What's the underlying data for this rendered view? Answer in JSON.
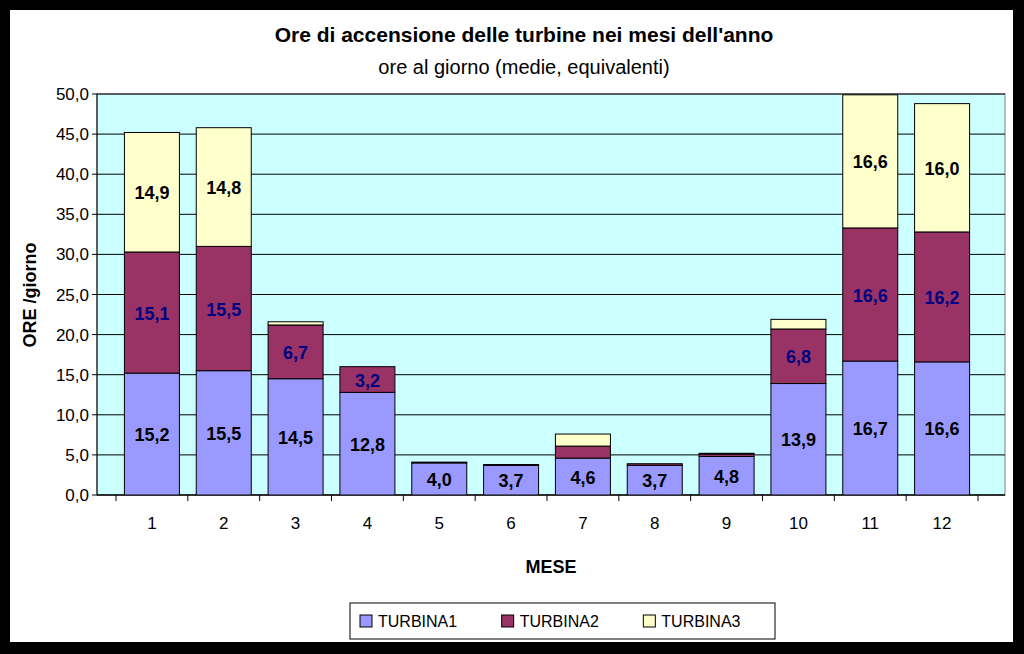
{
  "chart_data": {
    "type": "bar",
    "title": "Ore di accensione delle turbine nei mesi dell'anno",
    "subtitle": "ore al giorno (medie, equivalenti)",
    "x_label": "MESE",
    "y_label": "ORE /giorno",
    "categories": [
      "1",
      "2",
      "3",
      "4",
      "5",
      "6",
      "7",
      "8",
      "9",
      "10",
      "11",
      "12"
    ],
    "stacked": true,
    "data_labels": true,
    "grid": true,
    "legend": "bottom",
    "ylim": [
      0,
      50
    ],
    "yticks": [
      {
        "value": 0,
        "label": "0,0"
      },
      {
        "value": 5,
        "label": "5,0"
      },
      {
        "value": 10,
        "label": "10,0"
      },
      {
        "value": 15,
        "label": "15,0"
      },
      {
        "value": 20,
        "label": "20,0"
      },
      {
        "value": 25,
        "label": "25,0"
      },
      {
        "value": 30,
        "label": "30,0"
      },
      {
        "value": 35,
        "label": "35,0"
      },
      {
        "value": 40,
        "label": "40,0"
      },
      {
        "value": 45,
        "label": "45,0"
      },
      {
        "value": 50,
        "label": "50,0"
      }
    ],
    "series": [
      {
        "name": "TURBINA1",
        "color": "#9999ff",
        "values": [
          15.2,
          15.5,
          14.5,
          12.8,
          4.0,
          3.7,
          4.6,
          3.7,
          4.8,
          13.9,
          16.7,
          16.6
        ],
        "value_labels": [
          "15,2",
          "15,5",
          "14,5",
          "12,8",
          "4,0",
          "3,7",
          "4,6",
          "3,7",
          "4,8",
          "13,9",
          "16,7",
          "16,6"
        ]
      },
      {
        "name": "TURBINA2",
        "color": "#993366",
        "values": [
          15.1,
          15.5,
          6.7,
          3.2,
          0.1,
          0.1,
          1.5,
          0.2,
          0.3,
          6.8,
          16.6,
          16.2
        ],
        "value_labels": [
          "15,1",
          "15,5",
          "6,7",
          "3,2",
          null,
          null,
          null,
          null,
          null,
          "6,8",
          "16,6",
          "16,2"
        ]
      },
      {
        "name": "TURBINA3",
        "color": "#ffffcc",
        "values": [
          14.9,
          14.8,
          0.4,
          0.0,
          0.0,
          0.0,
          1.5,
          0.0,
          0.1,
          1.2,
          16.6,
          16.0
        ],
        "value_labels": [
          "14,9",
          "14,8",
          null,
          null,
          null,
          null,
          null,
          null,
          null,
          null,
          "16,6",
          "16,0"
        ]
      }
    ]
  }
}
